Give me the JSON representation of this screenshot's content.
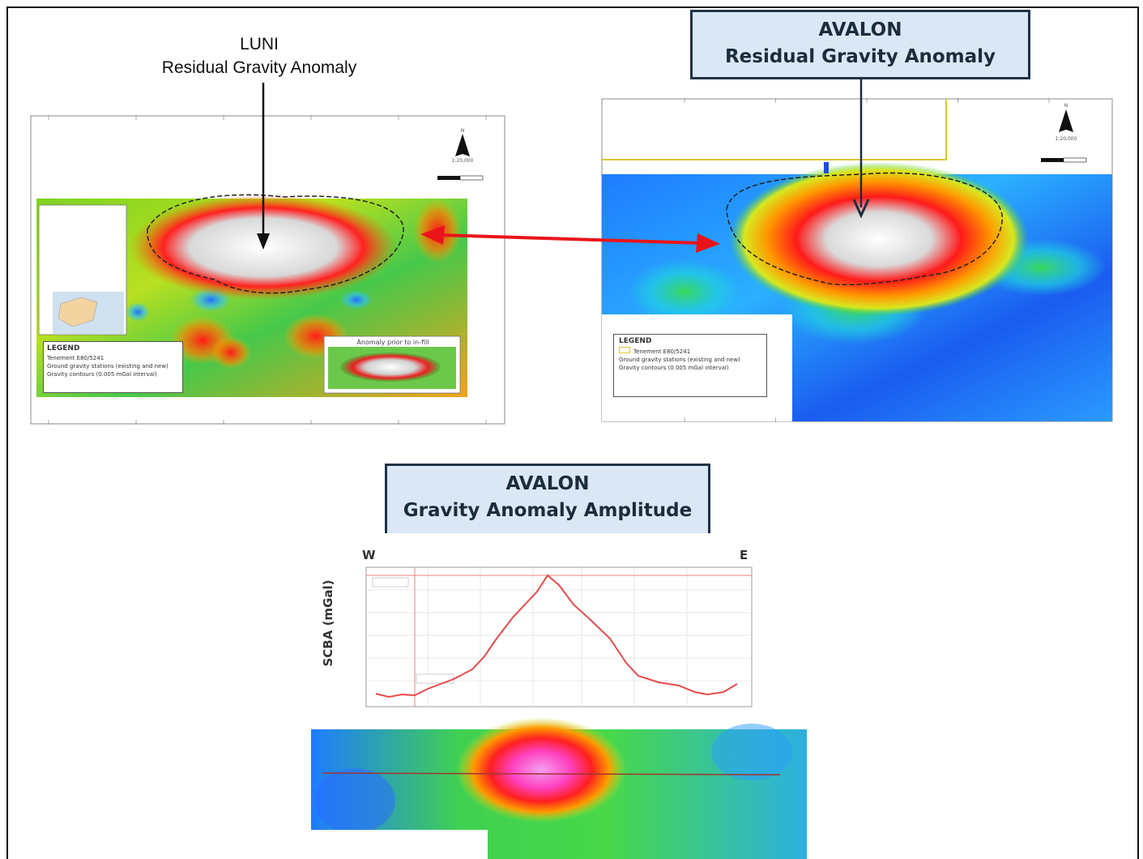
{
  "luni": {
    "title_line1": "LUNI",
    "title_line2": "Residual Gravity Anomaly",
    "legend": {
      "heading": "LEGEND",
      "items": [
        "Tenement E80/5241",
        "Ground gravity stations (existing and new)",
        "Gravity contours (0.005 mGal interval)"
      ]
    },
    "inset_label": "Anomaly prior to in-fill",
    "scale_text": "1:20,000",
    "north": "N"
  },
  "avalon_map": {
    "title_line1": "AVALON",
    "title_line2": "Residual Gravity Anomaly",
    "legend": {
      "heading": "LEGEND",
      "items": [
        "Tenement E80/5241",
        "Ground gravity stations (existing and new)",
        "Gravity contours (0.005 mGal interval)"
      ]
    },
    "scale_text": "1:20,000",
    "north": "N"
  },
  "avalon_profile": {
    "title_line1": "AVALON",
    "title_line2": "Gravity Anomaly Amplitude",
    "west": "W",
    "east": "E",
    "y_axis_label": "SCBA (mGal)"
  },
  "colors": {
    "callout_fill": "#dbe7f4",
    "callout_border": "#1f3347",
    "link_arrow": "#e8141a",
    "profile_line": "#e84a4a"
  },
  "icons": [
    "north-arrow-icon",
    "down-arrow-icon",
    "double-headed-arrow-icon"
  ]
}
